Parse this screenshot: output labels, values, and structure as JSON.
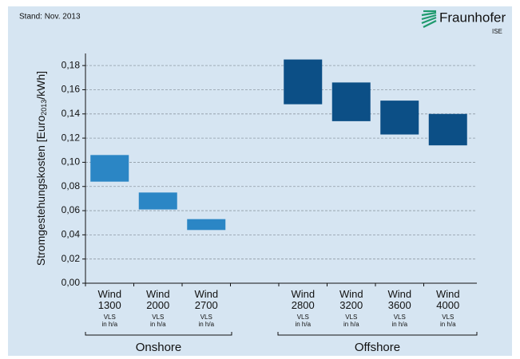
{
  "chart_data": {
    "type": "floating-bar",
    "title": "Stand: Nov. 2013",
    "logo": {
      "name": "Fraunhofer",
      "unit": "ISE"
    },
    "y_label": {
      "text": "Stromgestehungskosten [Euro",
      "sub": "2013",
      "end": "/kWh]"
    },
    "categories": [
      "Wind 1300",
      "Wind 2000",
      "Wind 2700",
      null,
      "Wind 2800",
      "Wind 3200",
      "Wind 3600",
      "Wind 4000"
    ],
    "category_note": "VLS in h/a",
    "low": [
      0.084,
      0.061,
      0.044,
      null,
      0.148,
      0.134,
      0.123,
      0.114
    ],
    "high": [
      0.106,
      0.075,
      0.053,
      null,
      0.185,
      0.166,
      0.151,
      0.14
    ],
    "colors": [
      "#2b86c5",
      "#2b86c5",
      "#2b86c5",
      null,
      "#0c4f86",
      "#0c4f86",
      "#0c4f86",
      "#0c4f86"
    ],
    "groups": [
      "Onshore",
      "Offshore"
    ],
    "ylim": [
      0,
      0.19
    ],
    "yticks": [
      {
        "value": 0,
        "label": "0,00"
      },
      {
        "value": 0.02,
        "label": "0,02"
      },
      {
        "value": 0.04,
        "label": "0,04"
      },
      {
        "value": 0.06,
        "label": "0,06"
      },
      {
        "value": 0.08,
        "label": "0,08"
      },
      {
        "value": 0.1,
        "label": "0,10"
      },
      {
        "value": 0.12,
        "label": "0,12"
      },
      {
        "value": 0.14,
        "label": "0,14"
      },
      {
        "value": 0.16,
        "label": "0,16"
      },
      {
        "value": 0.18,
        "label": "0,18"
      }
    ],
    "grid": true
  }
}
